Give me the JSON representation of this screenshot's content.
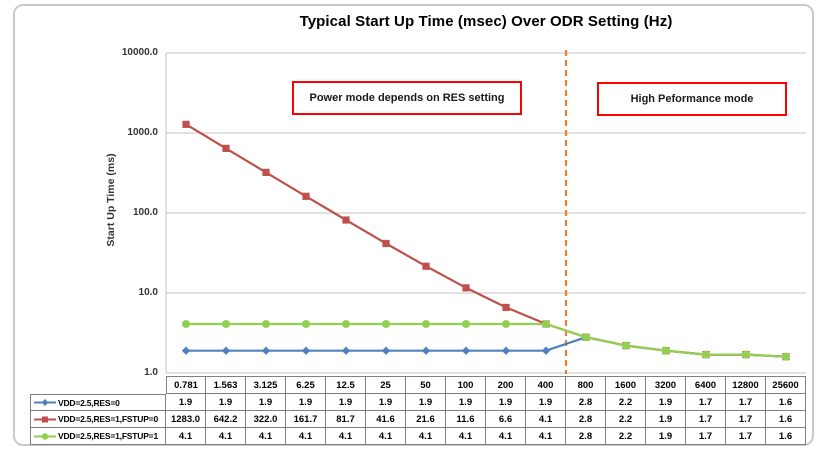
{
  "window": {
    "background": "#ffffff",
    "panel_border_color": "#c9c9c9"
  },
  "chart_data": {
    "type": "line",
    "title": "Typical Start Up Time (msec) Over ODR Setting (Hz)",
    "xlabel": "",
    "ylabel": "Start Up Time (ms)",
    "y_scale": "log",
    "ylim": [
      1,
      10000
    ],
    "grid": "horizontal",
    "legend_position": "data-table-left",
    "y_ticks": [
      {
        "label": "10000.0",
        "value": 10000
      },
      {
        "label": "1000.0",
        "value": 1000
      },
      {
        "label": "100.0",
        "value": 100
      },
      {
        "label": "10.0",
        "value": 10
      },
      {
        "label": "1.0",
        "value": 1
      }
    ],
    "categories": [
      "0.781",
      "1.563",
      "3.125",
      "6.25",
      "12.5",
      "25",
      "50",
      "100",
      "200",
      "400",
      "800",
      "1600",
      "3200",
      "6400",
      "12800",
      "25600"
    ],
    "series": [
      {
        "name": "VDD=2.5,RES=0",
        "color": "#4F81BD",
        "marker": "diamond",
        "values": [
          1.9,
          1.9,
          1.9,
          1.9,
          1.9,
          1.9,
          1.9,
          1.9,
          1.9,
          1.9,
          2.8,
          2.2,
          1.9,
          1.7,
          1.7,
          1.6
        ]
      },
      {
        "name": "VDD=2.5,RES=1,FSTUP=0",
        "color": "#C0504D",
        "marker": "square",
        "values": [
          1283.0,
          642.2,
          322.0,
          161.7,
          81.7,
          41.6,
          21.6,
          11.6,
          6.6,
          4.1,
          2.8,
          2.2,
          1.9,
          1.7,
          1.7,
          1.6
        ]
      },
      {
        "name": "VDD=2.5,RES=1,FSTUP=1",
        "color": "#92D050",
        "marker": "circle",
        "values": [
          4.1,
          4.1,
          4.1,
          4.1,
          4.1,
          4.1,
          4.1,
          4.1,
          4.1,
          4.1,
          2.8,
          2.2,
          1.9,
          1.7,
          1.7,
          1.6
        ]
      }
    ],
    "divider": {
      "position_between": [
        "400",
        "800"
      ],
      "color": "#ED7D31",
      "style": "dashed"
    },
    "annotations": [
      {
        "text": "Power mode depends on RES setting",
        "border_color": "#FF0000"
      },
      {
        "text": "High Peformance mode",
        "border_color": "#FF0000"
      }
    ]
  }
}
